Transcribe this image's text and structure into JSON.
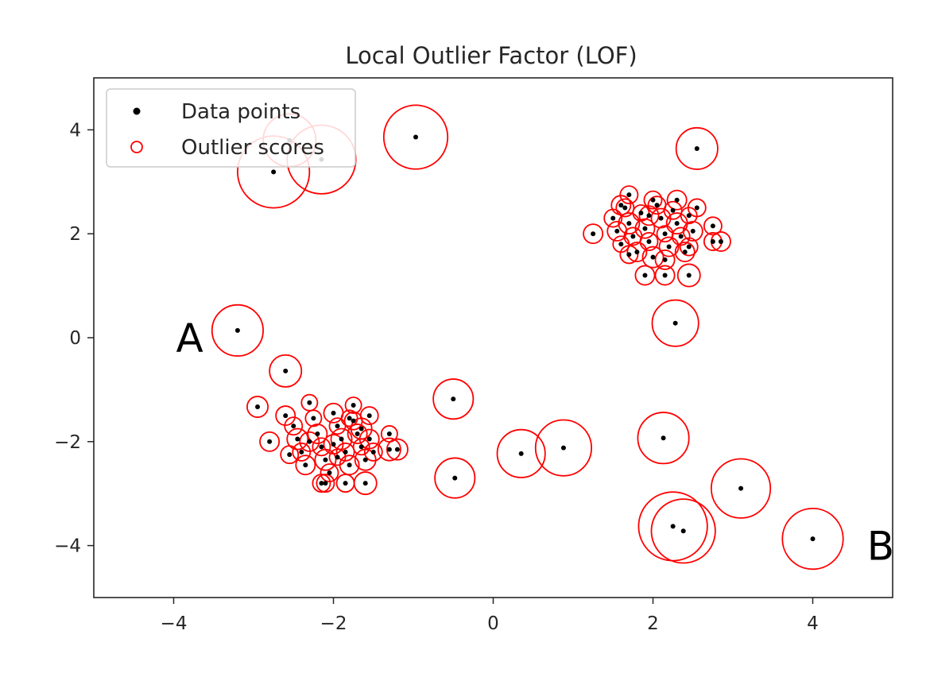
{
  "chart_data": {
    "type": "scatter",
    "title": "Local Outlier Factor (LOF)",
    "xlabel": "",
    "ylabel": "",
    "xlim": [
      -5,
      5
    ],
    "ylim": [
      -5,
      5
    ],
    "xticks": [
      -4,
      -2,
      0,
      2,
      4
    ],
    "yticks": [
      -4,
      -2,
      0,
      2,
      4
    ],
    "xtick_labels": [
      "−4",
      "−2",
      "0",
      "2",
      "4"
    ],
    "ytick_labels": [
      "−4",
      "−2",
      "0",
      "2",
      "4"
    ],
    "grid": false,
    "legend": {
      "placement": "top-left",
      "entries": [
        "Data points",
        "Outlier scores"
      ]
    },
    "colors": {
      "points": "#000000",
      "scores": "#ff0000",
      "axes": "#262626"
    },
    "annotations": [
      {
        "text": "A",
        "x": -3.8,
        "y": 0.0
      },
      {
        "text": "B",
        "x": 4.85,
        "y": -4.0
      }
    ],
    "series": [
      {
        "name": "Data points",
        "points": [
          [
            -3.2,
            0.14
          ],
          [
            -2.6,
            -0.64
          ],
          [
            -2.95,
            -1.33
          ],
          [
            -2.8,
            -2.0
          ],
          [
            -2.75,
            3.19
          ],
          [
            -2.15,
            3.43
          ],
          [
            -2.55,
            3.8
          ],
          [
            -0.97,
            3.86
          ],
          [
            -0.5,
            -1.18
          ],
          [
            -0.48,
            -2.7
          ],
          [
            0.35,
            -2.23
          ],
          [
            0.88,
            -2.12
          ],
          [
            2.28,
            0.28
          ],
          [
            2.13,
            -1.93
          ],
          [
            3.1,
            -2.9
          ],
          [
            2.25,
            -3.63
          ],
          [
            2.38,
            -3.72
          ],
          [
            4.0,
            -3.87
          ],
          [
            2.55,
            3.64
          ],
          [
            1.25,
            2.0
          ],
          [
            2.75,
            2.15
          ],
          [
            2.75,
            1.85
          ],
          [
            2.85,
            1.85
          ],
          [
            1.9,
            1.2
          ],
          [
            2.15,
            1.2
          ],
          [
            2.45,
            1.2
          ],
          [
            1.7,
            2.75
          ],
          [
            -2.1,
            -2.8
          ],
          [
            -2.15,
            -2.8
          ],
          [
            -1.6,
            -2.8
          ],
          [
            -1.85,
            -2.8
          ],
          [
            -1.3,
            -2.15
          ],
          [
            -1.2,
            -2.15
          ],
          [
            -1.3,
            -1.85
          ],
          [
            -2.3,
            -1.25
          ],
          [
            -1.75,
            -1.3
          ],
          [
            -2.6,
            -1.5
          ],
          [
            -2.5,
            -1.7
          ],
          [
            -2.45,
            -1.95
          ],
          [
            -2.4,
            -2.2
          ],
          [
            -2.35,
            -2.45
          ],
          [
            -2.25,
            -1.55
          ],
          [
            -2.2,
            -1.85
          ],
          [
            -2.15,
            -2.1
          ],
          [
            -2.1,
            -2.35
          ],
          [
            -2.05,
            -2.6
          ],
          [
            -2.0,
            -1.45
          ],
          [
            -1.95,
            -1.7
          ],
          [
            -1.9,
            -1.95
          ],
          [
            -1.85,
            -2.2
          ],
          [
            -1.8,
            -2.45
          ],
          [
            -1.75,
            -1.6
          ],
          [
            -1.7,
            -1.85
          ],
          [
            -1.65,
            -2.1
          ],
          [
            -1.6,
            -2.35
          ],
          [
            -1.55,
            -1.5
          ],
          [
            -1.55,
            -1.95
          ],
          [
            -1.5,
            -2.2
          ],
          [
            -2.3,
            -2.0
          ],
          [
            -1.95,
            -2.3
          ],
          [
            -1.65,
            -1.75
          ],
          [
            -2.55,
            -2.25
          ],
          [
            -2.0,
            -2.05
          ],
          [
            -1.8,
            -1.55
          ],
          [
            1.5,
            2.3
          ],
          [
            1.55,
            2.05
          ],
          [
            1.6,
            1.8
          ],
          [
            1.65,
            2.5
          ],
          [
            1.7,
            2.2
          ],
          [
            1.75,
            1.95
          ],
          [
            1.8,
            1.65
          ],
          [
            1.85,
            2.4
          ],
          [
            1.9,
            2.1
          ],
          [
            1.95,
            1.85
          ],
          [
            2.0,
            1.55
          ],
          [
            2.05,
            2.55
          ],
          [
            2.1,
            2.3
          ],
          [
            2.15,
            2.0
          ],
          [
            2.2,
            1.75
          ],
          [
            2.25,
            2.45
          ],
          [
            2.3,
            2.2
          ],
          [
            2.35,
            1.95
          ],
          [
            2.4,
            1.65
          ],
          [
            2.45,
            2.35
          ],
          [
            2.5,
            2.05
          ],
          [
            2.0,
            2.65
          ],
          [
            2.3,
            2.65
          ],
          [
            1.7,
            1.6
          ],
          [
            2.15,
            1.5
          ],
          [
            2.45,
            1.75
          ],
          [
            1.6,
            2.55
          ],
          [
            2.55,
            2.5
          ],
          [
            1.95,
            2.35
          ]
        ]
      },
      {
        "name": "Outlier scores",
        "points": [
          [
            -3.2,
            0.14,
            0.32
          ],
          [
            -2.6,
            -0.64,
            0.2
          ],
          [
            -2.95,
            -1.33,
            0.13
          ],
          [
            -2.8,
            -2.0,
            0.12
          ],
          [
            -2.75,
            3.19,
            0.45
          ],
          [
            -2.15,
            3.43,
            0.43
          ],
          [
            -2.55,
            3.8,
            0.33
          ],
          [
            -0.97,
            3.86,
            0.4
          ],
          [
            -0.5,
            -1.18,
            0.25
          ],
          [
            -0.48,
            -2.7,
            0.25
          ],
          [
            0.35,
            -2.23,
            0.3
          ],
          [
            0.88,
            -2.12,
            0.35
          ],
          [
            2.28,
            0.28,
            0.29
          ],
          [
            2.13,
            -1.93,
            0.32
          ],
          [
            3.1,
            -2.9,
            0.37
          ],
          [
            2.25,
            -3.63,
            0.43
          ],
          [
            2.38,
            -3.72,
            0.4
          ],
          [
            4.0,
            -3.87,
            0.38
          ],
          [
            2.55,
            3.64,
            0.26
          ],
          [
            1.25,
            2.0,
            0.12
          ],
          [
            2.75,
            2.15,
            0.11
          ],
          [
            2.75,
            1.85,
            0.11
          ],
          [
            2.85,
            1.85,
            0.12
          ],
          [
            1.9,
            1.2,
            0.12
          ],
          [
            2.15,
            1.2,
            0.12
          ],
          [
            2.45,
            1.2,
            0.14
          ],
          [
            1.7,
            2.75,
            0.11
          ],
          [
            -2.1,
            -2.8,
            0.11
          ],
          [
            -2.15,
            -2.8,
            0.11
          ],
          [
            -1.6,
            -2.8,
            0.14
          ],
          [
            -1.85,
            -2.8,
            0.11
          ],
          [
            -1.3,
            -2.15,
            0.14
          ],
          [
            -1.2,
            -2.15,
            0.13
          ],
          [
            -1.3,
            -1.85,
            0.1
          ],
          [
            -2.3,
            -1.25,
            0.1
          ],
          [
            -1.75,
            -1.3,
            0.1
          ],
          [
            -2.6,
            -1.5,
            0.12
          ],
          [
            -2.5,
            -1.7,
            0.11
          ],
          [
            -2.45,
            -1.95,
            0.13
          ],
          [
            -2.4,
            -2.2,
            0.11
          ],
          [
            -2.35,
            -2.45,
            0.12
          ],
          [
            -2.25,
            -1.55,
            0.1
          ],
          [
            -2.2,
            -1.85,
            0.12
          ],
          [
            -2.15,
            -2.1,
            0.11
          ],
          [
            -2.1,
            -2.35,
            0.13
          ],
          [
            -2.05,
            -2.6,
            0.11
          ],
          [
            -2.0,
            -1.45,
            0.12
          ],
          [
            -1.95,
            -1.7,
            0.1
          ],
          [
            -1.9,
            -1.95,
            0.13
          ],
          [
            -1.85,
            -2.2,
            0.11
          ],
          [
            -1.8,
            -2.45,
            0.12
          ],
          [
            -1.75,
            -1.6,
            0.11
          ],
          [
            -1.7,
            -1.85,
            0.12
          ],
          [
            -1.65,
            -2.1,
            0.1
          ],
          [
            -1.6,
            -2.35,
            0.13
          ],
          [
            -1.55,
            -1.5,
            0.11
          ],
          [
            -1.55,
            -1.95,
            0.12
          ],
          [
            -1.5,
            -2.2,
            0.11
          ],
          [
            -2.3,
            -2.0,
            0.12
          ],
          [
            -1.95,
            -2.3,
            0.1
          ],
          [
            -1.65,
            -1.75,
            0.13
          ],
          [
            -2.55,
            -2.25,
            0.11
          ],
          [
            -2.0,
            -2.05,
            0.12
          ],
          [
            -1.8,
            -1.55,
            0.1
          ],
          [
            1.5,
            2.3,
            0.11
          ],
          [
            1.55,
            2.05,
            0.12
          ],
          [
            1.6,
            1.8,
            0.1
          ],
          [
            1.65,
            2.5,
            0.11
          ],
          [
            1.7,
            2.2,
            0.13
          ],
          [
            1.75,
            1.95,
            0.11
          ],
          [
            1.8,
            1.65,
            0.12
          ],
          [
            1.85,
            2.4,
            0.1
          ],
          [
            1.9,
            2.1,
            0.12
          ],
          [
            1.95,
            1.85,
            0.11
          ],
          [
            2.0,
            1.55,
            0.13
          ],
          [
            2.05,
            2.55,
            0.11
          ],
          [
            2.1,
            2.3,
            0.12
          ],
          [
            2.15,
            2.0,
            0.1
          ],
          [
            2.2,
            1.75,
            0.12
          ],
          [
            2.25,
            2.45,
            0.11
          ],
          [
            2.3,
            2.2,
            0.13
          ],
          [
            2.35,
            1.95,
            0.11
          ],
          [
            2.4,
            1.65,
            0.12
          ],
          [
            2.45,
            2.35,
            0.1
          ],
          [
            2.5,
            2.05,
            0.12
          ],
          [
            2.0,
            2.65,
            0.11
          ],
          [
            2.3,
            2.65,
            0.12
          ],
          [
            1.7,
            1.6,
            0.11
          ],
          [
            2.15,
            1.5,
            0.12
          ],
          [
            2.45,
            1.75,
            0.11
          ],
          [
            1.6,
            2.55,
            0.12
          ],
          [
            2.55,
            2.5,
            0.11
          ],
          [
            1.95,
            2.35,
            0.12
          ]
        ]
      }
    ]
  }
}
